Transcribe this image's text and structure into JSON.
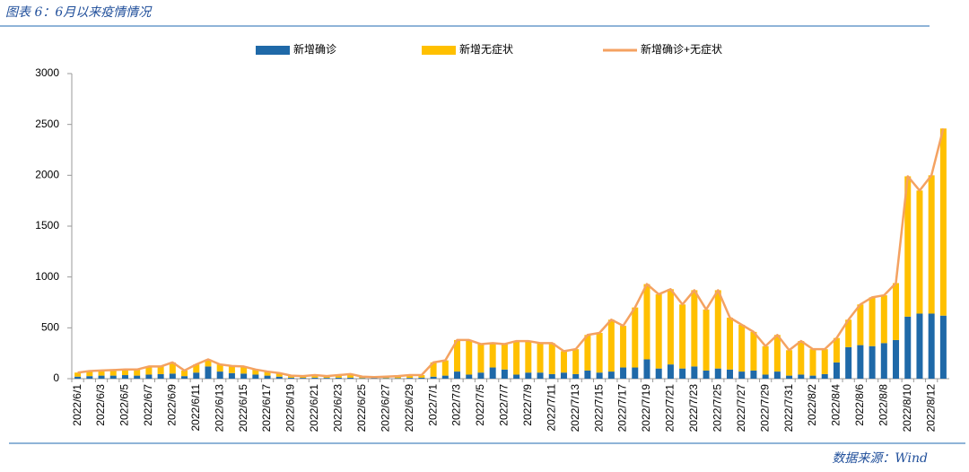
{
  "header": {
    "title": "图表 6：6月以来疫情情况"
  },
  "chart_data": {
    "type": "bar",
    "stacked": true,
    "categories": [
      "2022/6/1",
      null,
      "2022/6/3",
      null,
      "2022/6/5",
      null,
      "2022/6/7",
      null,
      "2022/6/9",
      null,
      "2022/6/11",
      null,
      "2022/6/13",
      null,
      "2022/6/15",
      null,
      "2022/6/17",
      null,
      "2022/6/19",
      null,
      "2022/6/21",
      null,
      "2022/6/23",
      null,
      "2022/6/25",
      null,
      "2022/6/27",
      null,
      "2022/6/29",
      null,
      "2022/7/1",
      null,
      "2022/7/3",
      null,
      "2022/7/5",
      null,
      "2022/7/7",
      null,
      "2022/7/9",
      null,
      "2022/7/11",
      null,
      "2022/7/13",
      null,
      "2022/7/15",
      null,
      "2022/7/17",
      null,
      "2022/7/19",
      null,
      "2022/7/21",
      null,
      "2022/7/23",
      null,
      "2022/7/25",
      null,
      "2022/7/27",
      null,
      "2022/7/29",
      null,
      "2022/7/31",
      null,
      "2022/8/2",
      null,
      "2022/8/4",
      null,
      "2022/8/6",
      null,
      "2022/8/8",
      null,
      "2022/8/10",
      null,
      "2022/8/12",
      null
    ],
    "series": [
      {
        "name": "新增确诊",
        "color": "#1f69a8",
        "values": [
          20,
          25,
          30,
          30,
          35,
          30,
          40,
          45,
          50,
          25,
          60,
          120,
          70,
          55,
          50,
          40,
          30,
          20,
          10,
          8,
          10,
          8,
          10,
          10,
          5,
          5,
          5,
          5,
          8,
          10,
          20,
          30,
          70,
          40,
          60,
          110,
          90,
          40,
          60,
          60,
          45,
          60,
          45,
          80,
          60,
          70,
          110,
          110,
          190,
          100,
          140,
          100,
          120,
          80,
          100,
          90,
          70,
          80,
          40,
          70,
          30,
          40,
          30,
          45,
          160,
          310,
          330,
          320,
          350,
          380,
          610,
          640,
          640,
          620
        ]
      },
      {
        "name": "新增无症状",
        "color": "#ffc000",
        "values": [
          40,
          50,
          50,
          55,
          55,
          60,
          80,
          75,
          110,
          55,
          80,
          70,
          70,
          70,
          70,
          50,
          40,
          35,
          20,
          17,
          25,
          17,
          25,
          35,
          15,
          10,
          15,
          20,
          27,
          25,
          140,
          150,
          310,
          340,
          280,
          240,
          250,
          330,
          310,
          290,
          305,
          210,
          245,
          350,
          390,
          510,
          410,
          590,
          740,
          730,
          740,
          630,
          750,
          600,
          770,
          510,
          460,
          380,
          280,
          360,
          250,
          330,
          260,
          245,
          240,
          270,
          400,
          480,
          470,
          560,
          1380,
          1210,
          1360,
          1840
        ]
      },
      {
        "name": "新增确诊+无症状",
        "type": "line",
        "color": "#f4a261",
        "values": [
          60,
          75,
          80,
          85,
          90,
          90,
          120,
          120,
          160,
          80,
          140,
          190,
          140,
          125,
          120,
          90,
          70,
          55,
          30,
          25,
          35,
          25,
          35,
          45,
          20,
          15,
          20,
          25,
          35,
          35,
          160,
          180,
          380,
          380,
          340,
          350,
          340,
          370,
          370,
          350,
          350,
          270,
          290,
          430,
          450,
          580,
          520,
          700,
          930,
          830,
          880,
          730,
          870,
          680,
          870,
          600,
          530,
          460,
          320,
          430,
          280,
          370,
          290,
          290,
          400,
          580,
          730,
          800,
          820,
          940,
          1990,
          1850,
          2000,
          2460
        ]
      }
    ],
    "ylim": [
      0,
      3000
    ],
    "yticks": [
      0,
      500,
      1000,
      1500,
      2000,
      2500,
      3000
    ],
    "grid": false,
    "legend": "top"
  },
  "footer": {
    "source": "数据来源：Wind"
  }
}
